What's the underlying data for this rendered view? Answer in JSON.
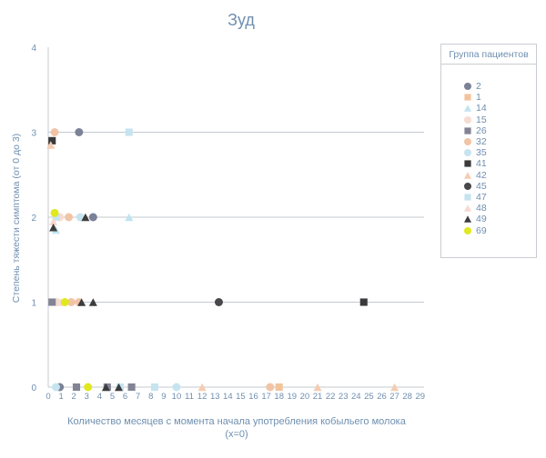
{
  "chart_data": {
    "type": "scatter",
    "title": "Зуд",
    "xlabel": "Количество месяцев с момента начала употребления кобыльего молока (x=0)",
    "ylabel": "Степень тяжести симптома (от 0 до 3)",
    "xlim": [
      0,
      29
    ],
    "ylim": [
      0,
      4
    ],
    "x_ticks": [
      "0",
      "1",
      "2",
      "3",
      "4",
      "5",
      "6",
      "7",
      "8",
      "9",
      "10",
      "11",
      "12",
      "13",
      "14",
      "15",
      "16",
      "17",
      "18",
      "19",
      "20",
      "21",
      "22",
      "23",
      "24",
      "25",
      "26",
      "27",
      "28",
      "29"
    ],
    "y_ticks": [
      "0",
      "1",
      "2",
      "3",
      "4"
    ],
    "legend_title": "Группа пациентов",
    "legend_position": "right",
    "grid": "horizontal",
    "series": [
      {
        "name": "2",
        "marker": "circle",
        "color": "#7b8197",
        "points": [
          [
            2.4,
            3
          ],
          [
            3.5,
            2
          ],
          [
            0.9,
            0
          ]
        ]
      },
      {
        "name": "1",
        "marker": "square",
        "color": "#f2c49e",
        "points": [
          [
            18,
            0
          ]
        ]
      },
      {
        "name": "14",
        "marker": "triangle",
        "color": "#bfe4f0",
        "points": [
          [
            0.6,
            1.85
          ],
          [
            6.3,
            2
          ]
        ]
      },
      {
        "name": "15",
        "marker": "circle",
        "color": "#f7dcd2",
        "points": [
          [
            0.7,
            1
          ],
          [
            0.9,
            2
          ]
        ]
      },
      {
        "name": "26",
        "marker": "square",
        "color": "#828494",
        "points": [
          [
            0.3,
            1
          ],
          [
            2.2,
            0
          ],
          [
            4.6,
            0
          ],
          [
            6.5,
            0
          ]
        ]
      },
      {
        "name": "32",
        "marker": "circle",
        "color": "#f2c4a6",
        "points": [
          [
            0.5,
            3
          ],
          [
            1.6,
            2
          ],
          [
            1.8,
            1
          ],
          [
            2.4,
            1
          ],
          [
            17.3,
            0
          ]
        ]
      },
      {
        "name": "35",
        "marker": "circle",
        "color": "#c6e4f0",
        "points": [
          [
            0.6,
            0
          ],
          [
            2.5,
            2
          ],
          [
            10,
            0
          ]
        ]
      },
      {
        "name": "41",
        "marker": "square",
        "color": "#3a3a3a",
        "points": [
          [
            0.3,
            2.9
          ],
          [
            24.6,
            1
          ]
        ]
      },
      {
        "name": "42",
        "marker": "triangle",
        "color": "#f5ccb0",
        "points": [
          [
            0.2,
            2.85
          ],
          [
            12,
            0
          ],
          [
            21,
            0
          ],
          [
            27,
            0
          ]
        ]
      },
      {
        "name": "45",
        "marker": "circle",
        "color": "#48484a",
        "points": [
          [
            13.3,
            1
          ]
        ]
      },
      {
        "name": "47",
        "marker": "square",
        "color": "#c6e4f0",
        "points": [
          [
            6.3,
            3
          ],
          [
            0.6,
            2
          ],
          [
            5.6,
            0
          ],
          [
            8.3,
            0
          ]
        ]
      },
      {
        "name": "48",
        "marker": "triangle",
        "color": "#f8d8d0",
        "points": [
          [
            0.4,
            1.95
          ],
          [
            1,
            1
          ]
        ]
      },
      {
        "name": "49",
        "marker": "triangle",
        "color": "#3c3c3e",
        "points": [
          [
            0.4,
            1.88
          ],
          [
            2.9,
            2
          ],
          [
            2.6,
            1
          ],
          [
            3.5,
            1
          ],
          [
            4.5,
            0
          ],
          [
            5.5,
            0
          ]
        ]
      },
      {
        "name": "69",
        "marker": "circle",
        "color": "#e0e820",
        "points": [
          [
            0.5,
            2.05
          ],
          [
            1.3,
            1
          ],
          [
            3.1,
            0
          ]
        ]
      }
    ]
  }
}
